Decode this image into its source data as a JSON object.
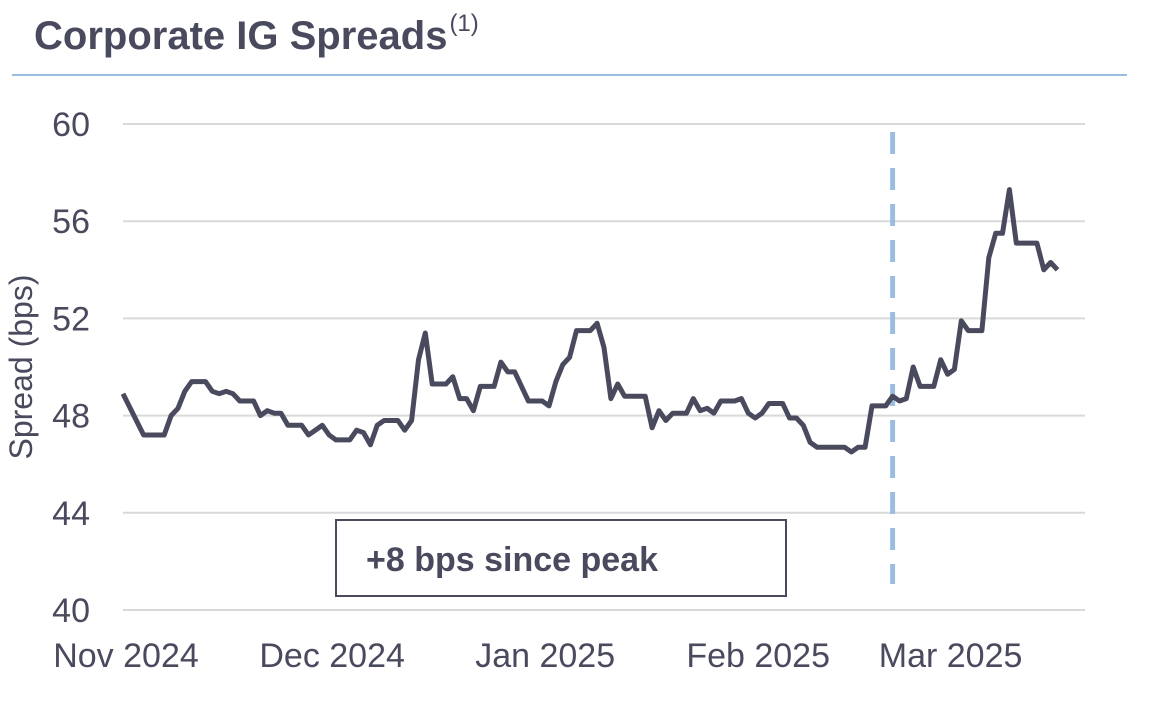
{
  "title": "Corporate IG Spreads",
  "title_superscript": "(1)",
  "colors": {
    "title": "#4a4a5e",
    "line": "#4a4a5e",
    "grid": "#d9d9d9",
    "title_rule": "#9dbde0",
    "marker_line": "#9dbde0",
    "annotation_border": "#4a4a5e"
  },
  "chart_data": {
    "type": "line",
    "ylabel": "Spread (bps)",
    "ylim": [
      40,
      60
    ],
    "yticks": [
      "60",
      "56",
      "52",
      "48",
      "44",
      "40"
    ],
    "xlim": [
      "2024-11-01",
      "2025-03-21"
    ],
    "xticks": [
      {
        "label": "Nov 2024",
        "date": "2024-11-01"
      },
      {
        "label": "Dec 2024",
        "date": "2024-12-01"
      },
      {
        "label": "Jan 2025",
        "date": "2025-01-01"
      },
      {
        "label": "Feb 2025",
        "date": "2025-02-01"
      },
      {
        "label": "Mar 2025",
        "date": "2025-03-01"
      }
    ],
    "grid": true,
    "vertical_marker_date": "2025-02-21",
    "annotation": "+8 bps since peak",
    "series": [
      {
        "points": [
          [
            "2024-11-01",
            48.9
          ],
          [
            "2024-11-04",
            47.2
          ],
          [
            "2024-11-05",
            47.2
          ],
          [
            "2024-11-06",
            47.2
          ],
          [
            "2024-11-07",
            47.2
          ],
          [
            "2024-11-08",
            48.0
          ],
          [
            "2024-11-09",
            48.3
          ],
          [
            "2024-11-10",
            49.0
          ],
          [
            "2024-11-11",
            49.4
          ],
          [
            "2024-11-12",
            49.4
          ],
          [
            "2024-11-13",
            49.4
          ],
          [
            "2024-11-14",
            49.0
          ],
          [
            "2024-11-15",
            48.9
          ],
          [
            "2024-11-16",
            49.0
          ],
          [
            "2024-11-17",
            48.9
          ],
          [
            "2024-11-18",
            48.6
          ],
          [
            "2024-11-19",
            48.6
          ],
          [
            "2024-11-20",
            48.6
          ],
          [
            "2024-11-21",
            48.0
          ],
          [
            "2024-11-22",
            48.2
          ],
          [
            "2024-11-23",
            48.1
          ],
          [
            "2024-11-24",
            48.1
          ],
          [
            "2024-11-25",
            47.6
          ],
          [
            "2024-11-26",
            47.6
          ],
          [
            "2024-11-27",
            47.6
          ],
          [
            "2024-11-28",
            47.2
          ],
          [
            "2024-11-29",
            47.4
          ],
          [
            "2024-11-30",
            47.6
          ],
          [
            "2024-12-01",
            47.2
          ],
          [
            "2024-12-02",
            47.0
          ],
          [
            "2024-12-03",
            47.0
          ],
          [
            "2024-12-04",
            47.0
          ],
          [
            "2024-12-05",
            47.4
          ],
          [
            "2024-12-06",
            47.3
          ],
          [
            "2024-12-07",
            46.8
          ],
          [
            "2024-12-08",
            47.6
          ],
          [
            "2024-12-09",
            47.8
          ],
          [
            "2024-12-10",
            47.8
          ],
          [
            "2024-12-11",
            47.8
          ],
          [
            "2024-12-12",
            47.4
          ],
          [
            "2024-12-13",
            47.8
          ],
          [
            "2024-12-14",
            50.3
          ],
          [
            "2024-12-15",
            51.4
          ],
          [
            "2024-12-16",
            49.3
          ],
          [
            "2024-12-17",
            49.3
          ],
          [
            "2024-12-18",
            49.3
          ],
          [
            "2024-12-19",
            49.6
          ],
          [
            "2024-12-20",
            48.7
          ],
          [
            "2024-12-21",
            48.7
          ],
          [
            "2024-12-22",
            48.2
          ],
          [
            "2024-12-23",
            49.2
          ],
          [
            "2024-12-24",
            49.2
          ],
          [
            "2024-12-25",
            49.2
          ],
          [
            "2024-12-26",
            50.2
          ],
          [
            "2024-12-27",
            49.8
          ],
          [
            "2024-12-28",
            49.8
          ],
          [
            "2024-12-29",
            49.2
          ],
          [
            "2024-12-30",
            48.6
          ],
          [
            "2024-12-31",
            48.6
          ],
          [
            "2025-01-01",
            48.6
          ],
          [
            "2025-01-02",
            48.4
          ],
          [
            "2025-01-03",
            49.4
          ],
          [
            "2025-01-04",
            50.1
          ],
          [
            "2025-01-05",
            50.4
          ],
          [
            "2025-01-06",
            51.5
          ],
          [
            "2025-01-07",
            51.5
          ],
          [
            "2025-01-08",
            51.5
          ],
          [
            "2025-01-09",
            51.8
          ],
          [
            "2025-01-10",
            50.8
          ],
          [
            "2025-01-11",
            48.7
          ],
          [
            "2025-01-12",
            49.3
          ],
          [
            "2025-01-13",
            48.8
          ],
          [
            "2025-01-14",
            48.8
          ],
          [
            "2025-01-15",
            48.8
          ],
          [
            "2025-01-16",
            48.8
          ],
          [
            "2025-01-17",
            47.5
          ],
          [
            "2025-01-18",
            48.2
          ],
          [
            "2025-01-19",
            47.8
          ],
          [
            "2025-01-20",
            48.1
          ],
          [
            "2025-01-21",
            48.1
          ],
          [
            "2025-01-22",
            48.1
          ],
          [
            "2025-01-23",
            48.7
          ],
          [
            "2025-01-24",
            48.2
          ],
          [
            "2025-01-25",
            48.3
          ],
          [
            "2025-01-26",
            48.1
          ],
          [
            "2025-01-27",
            48.6
          ],
          [
            "2025-01-28",
            48.6
          ],
          [
            "2025-01-29",
            48.6
          ],
          [
            "2025-01-30",
            48.7
          ],
          [
            "2025-01-31",
            48.1
          ],
          [
            "2025-02-01",
            47.9
          ],
          [
            "2025-02-02",
            48.1
          ],
          [
            "2025-02-03",
            48.5
          ],
          [
            "2025-02-04",
            48.5
          ],
          [
            "2025-02-05",
            48.5
          ],
          [
            "2025-02-06",
            47.9
          ],
          [
            "2025-02-07",
            47.9
          ],
          [
            "2025-02-08",
            47.6
          ],
          [
            "2025-02-09",
            46.9
          ],
          [
            "2025-02-10",
            46.7
          ],
          [
            "2025-02-11",
            46.7
          ],
          [
            "2025-02-12",
            46.7
          ],
          [
            "2025-02-13",
            46.7
          ],
          [
            "2025-02-14",
            46.7
          ],
          [
            "2025-02-15",
            46.5
          ],
          [
            "2025-02-16",
            46.7
          ],
          [
            "2025-02-17",
            46.7
          ],
          [
            "2025-02-18",
            48.4
          ],
          [
            "2025-02-19",
            48.4
          ],
          [
            "2025-02-20",
            48.4
          ],
          [
            "2025-02-21",
            48.8
          ],
          [
            "2025-02-22",
            48.6
          ],
          [
            "2025-02-23",
            48.7
          ],
          [
            "2025-02-24",
            50.0
          ],
          [
            "2025-02-25",
            49.2
          ],
          [
            "2025-02-26",
            49.2
          ],
          [
            "2025-02-27",
            49.2
          ],
          [
            "2025-02-28",
            50.3
          ],
          [
            "2025-03-01",
            49.7
          ],
          [
            "2025-03-02",
            49.9
          ],
          [
            "2025-03-03",
            51.9
          ],
          [
            "2025-03-04",
            51.5
          ],
          [
            "2025-03-05",
            51.5
          ],
          [
            "2025-03-06",
            51.5
          ],
          [
            "2025-03-07",
            54.5
          ],
          [
            "2025-03-08",
            55.5
          ],
          [
            "2025-03-09",
            55.5
          ],
          [
            "2025-03-10",
            57.3
          ],
          [
            "2025-03-11",
            55.1
          ],
          [
            "2025-03-12",
            55.1
          ],
          [
            "2025-03-13",
            55.1
          ],
          [
            "2025-03-14",
            55.1
          ],
          [
            "2025-03-15",
            54.0
          ],
          [
            "2025-03-16",
            54.3
          ],
          [
            "2025-03-17",
            54.0
          ]
        ]
      }
    ]
  }
}
